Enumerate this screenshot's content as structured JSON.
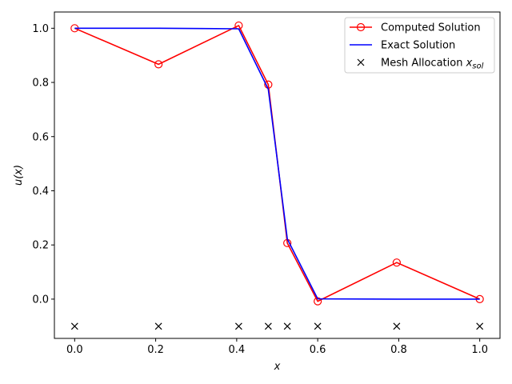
{
  "chart_data": {
    "type": "line",
    "xlabel": "x",
    "ylabel": "u(x)",
    "xlim": [
      -0.05,
      1.05
    ],
    "ylim": [
      -0.145,
      1.06
    ],
    "xticks": [
      0.0,
      0.2,
      0.4,
      0.6,
      0.8,
      1.0
    ],
    "xtick_labels": [
      "0.0",
      "0.2",
      "0.4",
      "0.6",
      "0.8",
      "1.0"
    ],
    "yticks": [
      0.0,
      0.2,
      0.4,
      0.6,
      0.8,
      1.0
    ],
    "ytick_labels": [
      "0.0",
      "0.2",
      "0.4",
      "0.6",
      "0.8",
      "1.0"
    ],
    "grid": false,
    "legend_position": "top-right",
    "series": [
      {
        "name": "Computed Solution",
        "color": "#ff0000",
        "marker": "open-circle",
        "x": [
          0.0,
          0.207,
          0.405,
          0.478,
          0.525,
          0.6,
          0.795,
          1.0
        ],
        "y": [
          1.0,
          0.867,
          1.01,
          0.792,
          0.207,
          -0.008,
          0.135,
          0.0
        ]
      },
      {
        "name": "Exact Solution",
        "color": "#0000ff",
        "marker": "none",
        "x": [
          0.0,
          0.207,
          0.405,
          0.478,
          0.525,
          0.6,
          0.795,
          1.0
        ],
        "y": [
          1.0,
          1.0,
          0.998,
          0.775,
          0.222,
          0.001,
          0.0,
          0.0
        ]
      },
      {
        "name": "Mesh Allocation x_sol",
        "legend_main": "Mesh Allocation ",
        "legend_var": "x",
        "legend_sub": "sol",
        "color": "#000000",
        "marker": "x",
        "x": [
          0.0,
          0.207,
          0.405,
          0.478,
          0.525,
          0.6,
          0.795,
          1.0
        ],
        "y": [
          -0.1,
          -0.1,
          -0.1,
          -0.1,
          -0.1,
          -0.1,
          -0.1,
          -0.1
        ]
      }
    ]
  }
}
